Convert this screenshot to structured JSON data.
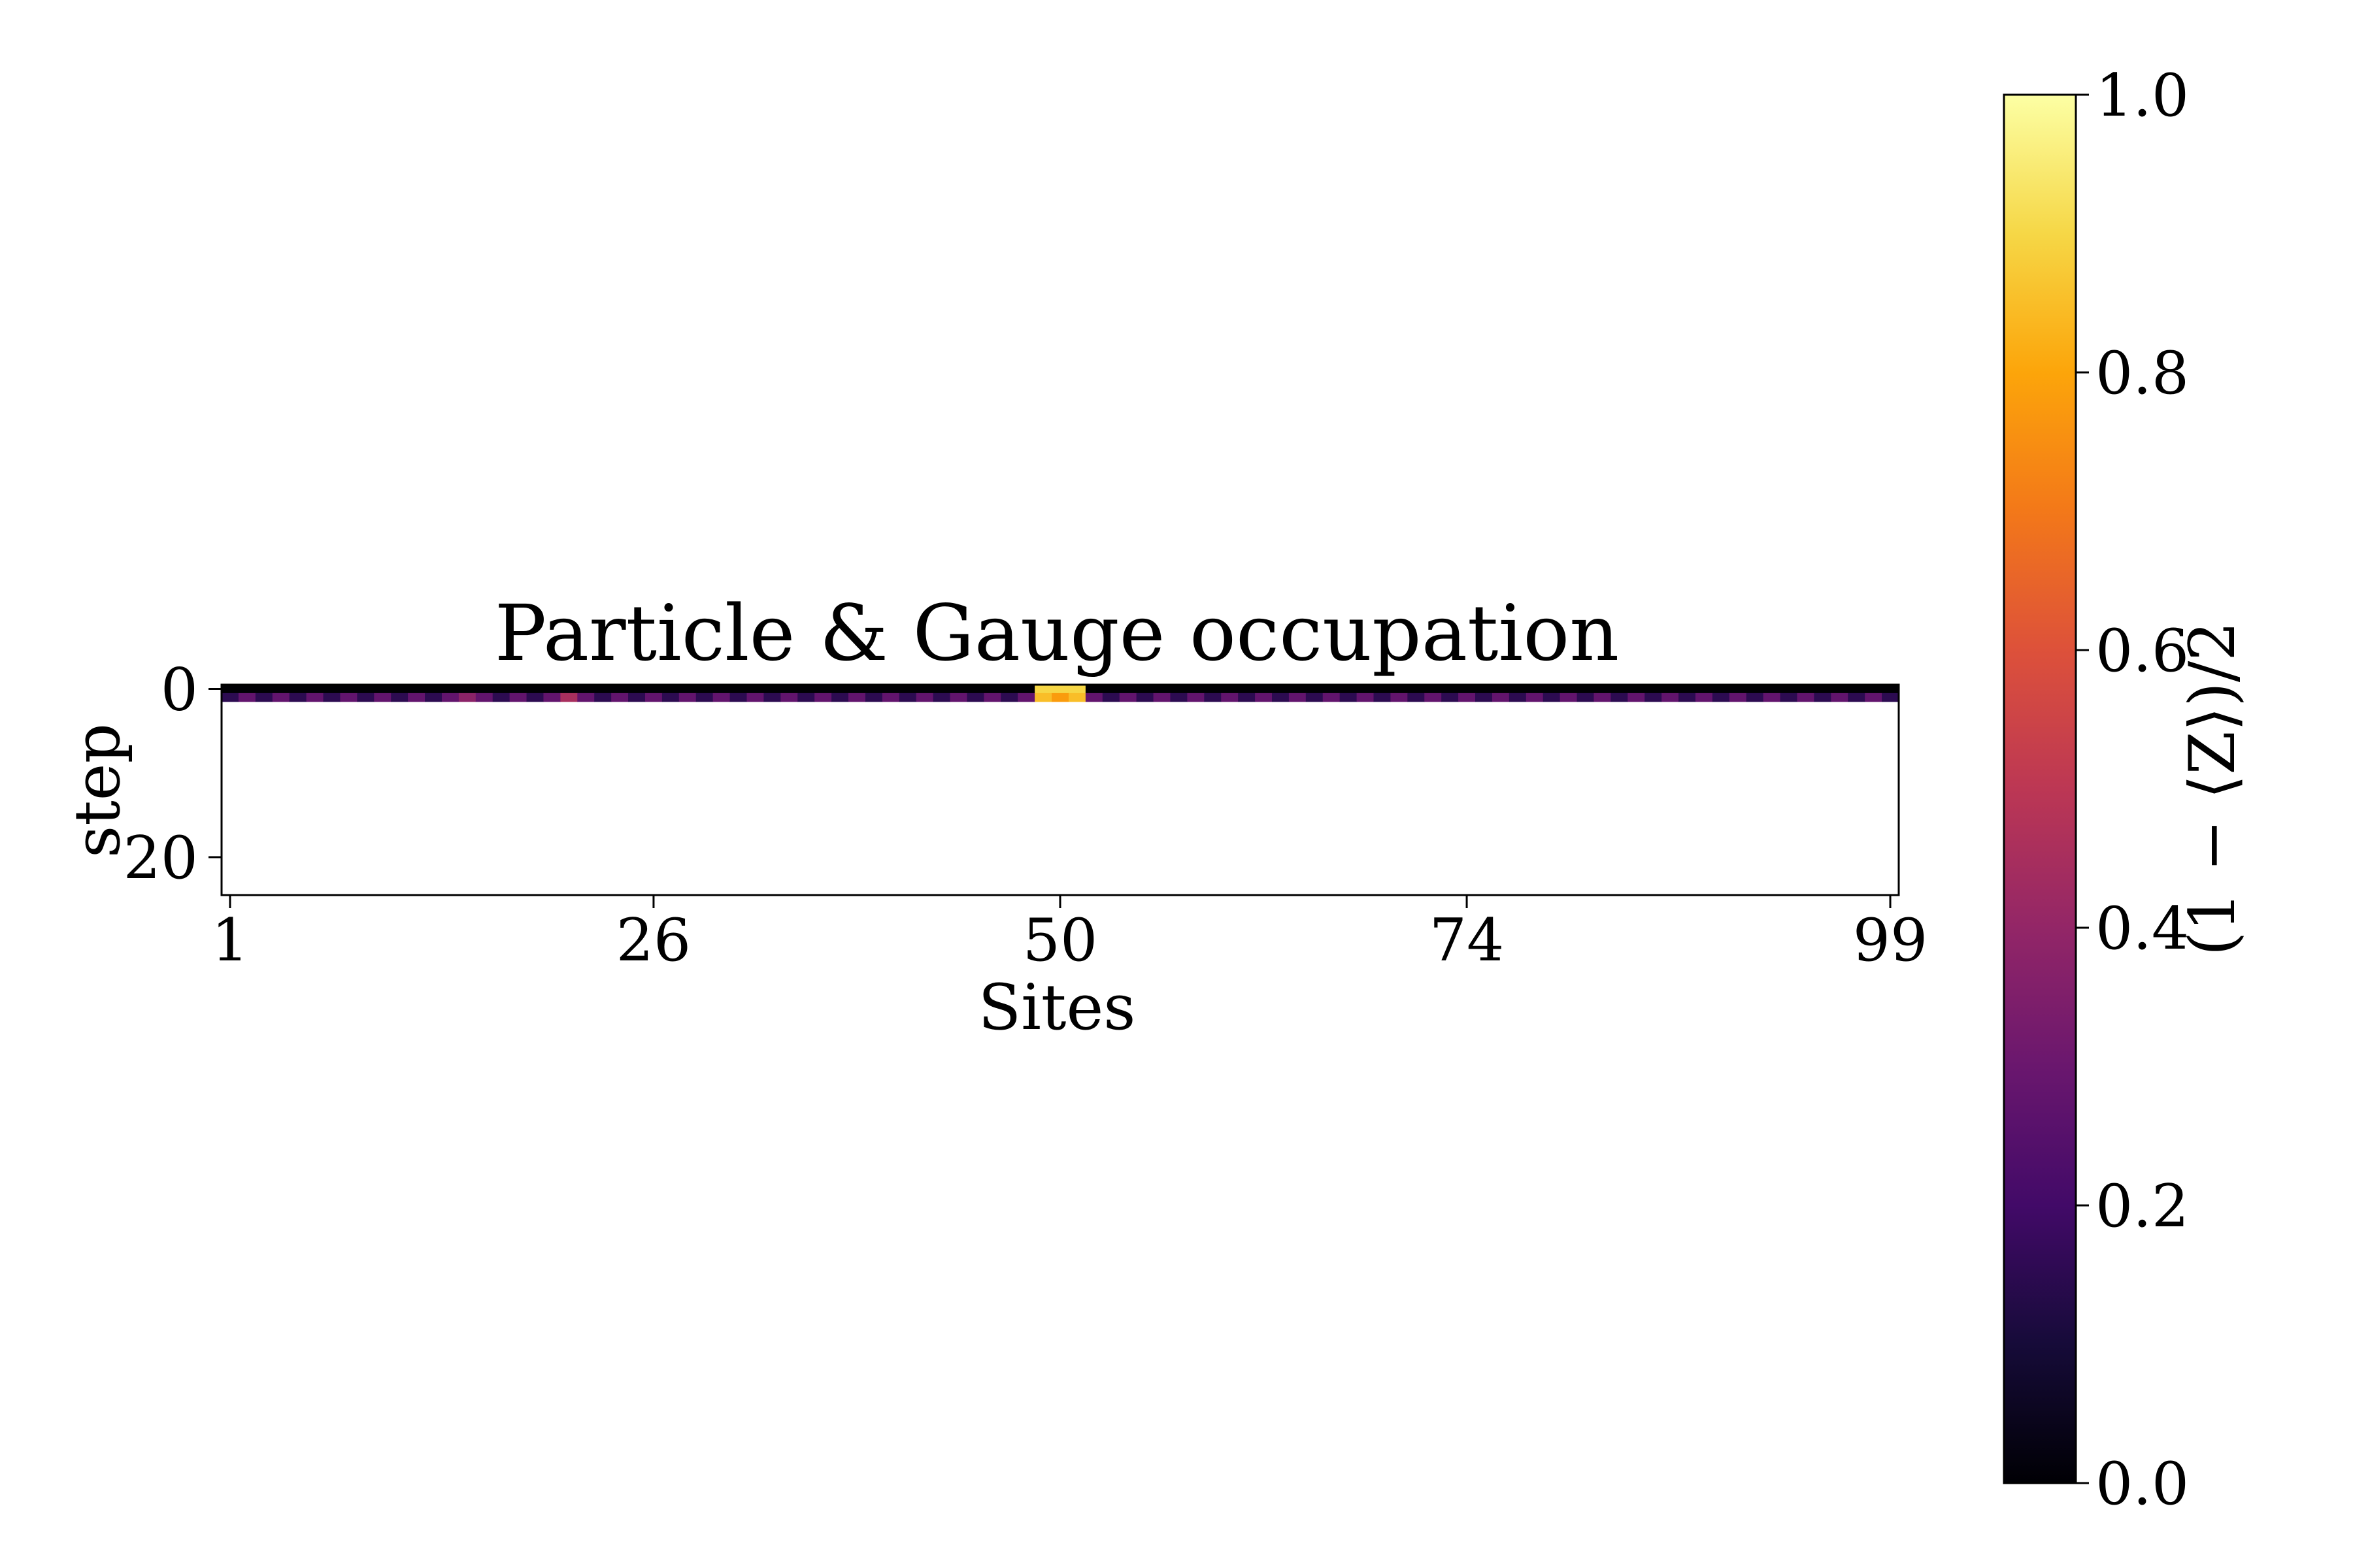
{
  "chart_data": {
    "type": "heatmap",
    "title": "Particle & Gauge occupation",
    "xlabel": "Sites",
    "ylabel": "step",
    "x_ticks": [
      1,
      26,
      50,
      74,
      99
    ],
    "x_tick_labels": [
      "1",
      "26",
      "50",
      "74",
      "99"
    ],
    "y_ticks": [
      0,
      20
    ],
    "y_tick_labels": [
      "0",
      "20"
    ],
    "x_range": [
      1,
      99
    ],
    "y_range": [
      0,
      24
    ],
    "grid": false,
    "colorbar": {
      "label": "(1 − ⟨Z⟩)/2",
      "colormap": "inferno",
      "range": [
        0,
        1
      ],
      "ticks": [
        0.0,
        0.2,
        0.4,
        0.6,
        0.8,
        1.0
      ],
      "tick_labels": [
        "0.0",
        "0.2",
        "0.4",
        "0.6",
        "0.8",
        "1.0"
      ]
    },
    "rows": [
      {
        "step": 0,
        "default_value": 0.0,
        "overrides": [
          {
            "sites": [
              49,
              50,
              51
            ],
            "value": 0.9
          }
        ]
      },
      {
        "step": 1,
        "pattern": {
          "odd_sites": 0.15,
          "even_sites": 0.28
        },
        "overrides": [
          {
            "sites": [
              15
            ],
            "value": 0.38
          },
          {
            "sites": [
              21
            ],
            "value": 0.45
          },
          {
            "sites": [
              49,
              51
            ],
            "value": 0.85
          },
          {
            "sites": [
              50
            ],
            "value": 0.78
          }
        ]
      }
    ]
  }
}
